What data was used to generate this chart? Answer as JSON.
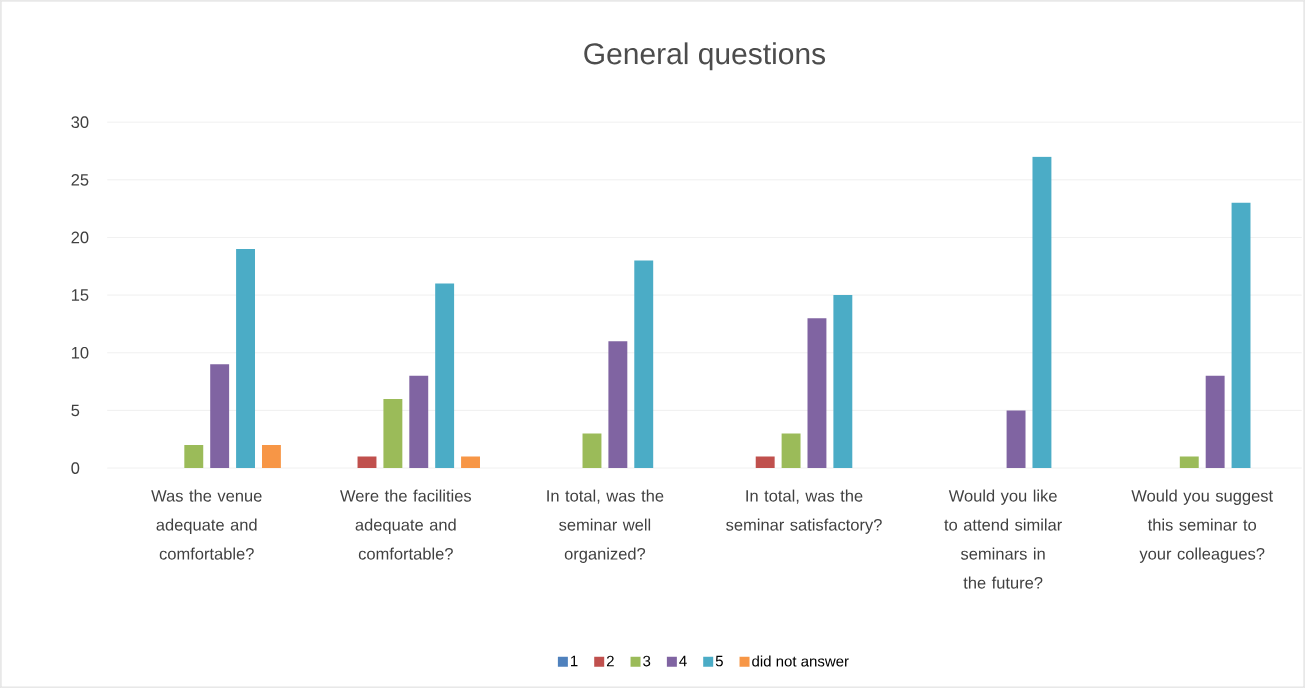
{
  "chart_data": {
    "type": "bar",
    "title": "General questions",
    "categories": [
      "Was the venue adequate and comfortable?",
      "Were the facilities adequate and comfortable?",
      "In total, was the seminar well organized?",
      "In total, was the seminar satisfactory?",
      "Would you like to attend similar seminars in the future?",
      "Would you suggest this seminar to your colleagues?"
    ],
    "series": [
      {
        "name": "1",
        "color": "#4f81bd",
        "values": [
          0,
          0,
          0,
          0,
          0,
          0
        ]
      },
      {
        "name": "2",
        "color": "#c0504d",
        "values": [
          0,
          1,
          0,
          1,
          0,
          0
        ]
      },
      {
        "name": "3",
        "color": "#9bbb59",
        "values": [
          2,
          6,
          3,
          3,
          0,
          1
        ]
      },
      {
        "name": "4",
        "color": "#8064a2",
        "values": [
          9,
          8,
          11,
          13,
          5,
          8
        ]
      },
      {
        "name": "5",
        "color": "#4bacc6",
        "values": [
          19,
          16,
          18,
          15,
          27,
          23
        ]
      },
      {
        "name": "did not answer",
        "color": "#f79646",
        "values": [
          2,
          1,
          0,
          0,
          0,
          0
        ]
      }
    ],
    "ylim": [
      0,
      30
    ],
    "yticks": [
      0,
      5,
      10,
      15,
      20,
      25,
      30
    ],
    "grid": "y",
    "legend": "bottom"
  }
}
